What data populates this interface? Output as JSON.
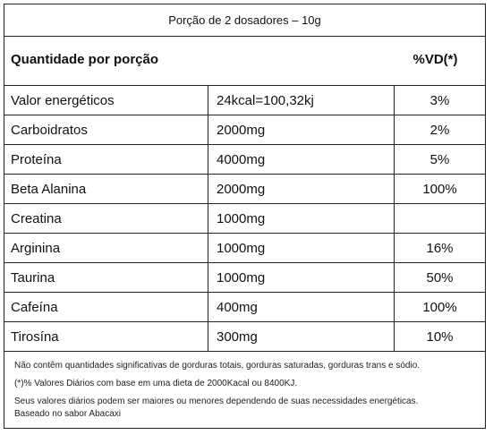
{
  "portion_header": "Porção de 2 dosadores – 10g",
  "table_header": {
    "quantity_label": "Quantidade por porção",
    "vd_label": "%VD(*)"
  },
  "rows": [
    {
      "name": "Valor energéticos",
      "amount": "24kcal=100,32kj",
      "vd": "3%"
    },
    {
      "name": "Carboidratos",
      "amount": "2000mg",
      "vd": "2%"
    },
    {
      "name": "Proteína",
      "amount": "4000mg",
      "vd": "5%"
    },
    {
      "name": "Beta Alanina",
      "amount": "2000mg",
      "vd": "100%"
    },
    {
      "name": "Creatina",
      "amount": "1000mg",
      "vd": ""
    },
    {
      "name": "Arginina",
      "amount": "1000mg",
      "vd": "16%"
    },
    {
      "name": "Taurina",
      "amount": "1000mg",
      "vd": "50%"
    },
    {
      "name": "Cafeína",
      "amount": "400mg",
      "vd": "100%"
    },
    {
      "name": "Tirosína",
      "amount": "300mg",
      "vd": "10%"
    }
  ],
  "footnotes": {
    "line1": "Não contêm quantidades significativas de gorduras totais, gorduras saturadas, gorduras trans e sódio.",
    "line2": "(*)% Valores Diários com base em uma dieta de 2000Kacal ou 8400KJ.",
    "line3": "Seus valores diários podem ser maiores ou menores dependendo de suas necessidades energéticas.",
    "line4": "Baseado no sabor Abacaxi"
  }
}
